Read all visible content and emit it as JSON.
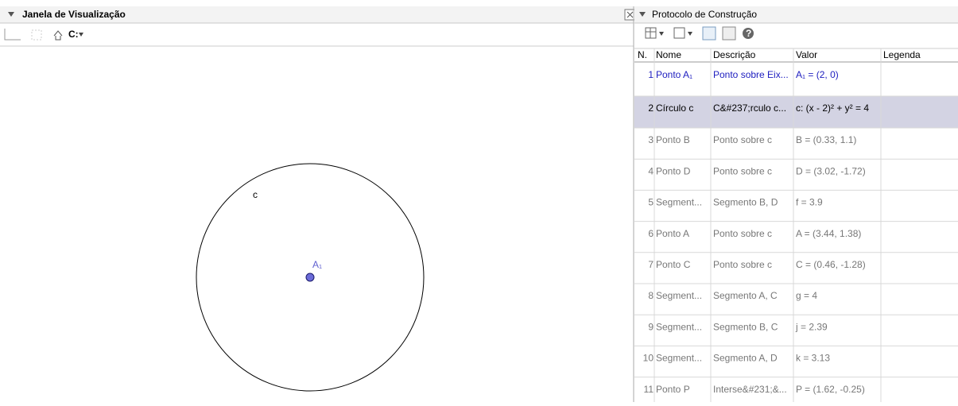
{
  "left_panel": {
    "title": "Janela de Visualização",
    "labels": {
      "circle": "c",
      "point": "A₁"
    }
  },
  "right_panel": {
    "title": "Protocolo de Construção"
  },
  "table": {
    "columns": [
      "N.",
      "Nome",
      "Descrição",
      "Valor",
      "Legenda"
    ],
    "rows": [
      [
        "1",
        "Ponto A₁",
        "Ponto sobre Eix...",
        "A₁ = (2, 0)",
        ""
      ],
      [
        "2",
        "Círculo c",
        "C&#237;rculo c...",
        "c: (x - 2)² + y² = 4",
        ""
      ],
      [
        "3",
        "Ponto B",
        "Ponto sobre c",
        "B = (0.33, 1.1)",
        ""
      ],
      [
        "4",
        "Ponto D",
        "Ponto sobre c",
        "D = (3.02, -1.72)",
        ""
      ],
      [
        "5",
        "Segment...",
        "Segmento B, D",
        "f = 3.9",
        ""
      ],
      [
        "6",
        "Ponto A",
        "Ponto sobre c",
        "A = (3.44, 1.38)",
        ""
      ],
      [
        "7",
        "Ponto C",
        "Ponto sobre c",
        "C = (0.46, -1.28)",
        ""
      ],
      [
        "8",
        "Segment...",
        "Segmento A, C",
        "g = 4",
        ""
      ],
      [
        "9",
        "Segment...",
        "Segmento B, C",
        "j = 2.39",
        ""
      ],
      [
        "10",
        "Segment...",
        "Segmento A, D",
        "k = 3.13",
        ""
      ],
      [
        "11",
        "Ponto P",
        "Interse&#231;&...",
        "P = (1.62, -0.25)",
        ""
      ]
    ]
  }
}
